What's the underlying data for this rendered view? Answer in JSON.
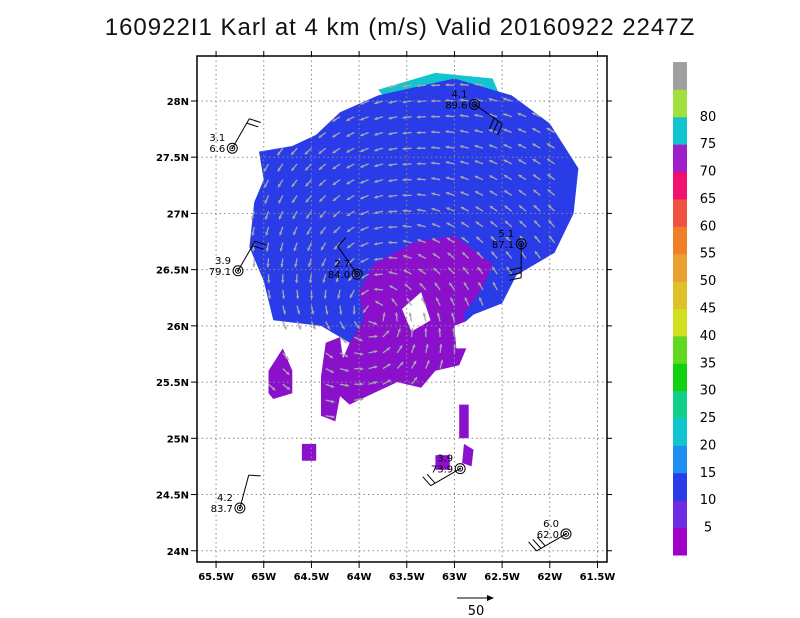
{
  "chart_data": {
    "type": "heatmap",
    "title": "160922I1 Karl at 4 km (m/s) Valid 20160922 2247Z",
    "xlim": [
      -65.7,
      -61.4
    ],
    "ylim": [
      23.9,
      28.4
    ],
    "x_ticks": [
      {
        "value": -65.5,
        "label": "65.5W"
      },
      {
        "value": -65.0,
        "label": "65W"
      },
      {
        "value": -64.5,
        "label": "64.5W"
      },
      {
        "value": -64.0,
        "label": "64W"
      },
      {
        "value": -63.5,
        "label": "63.5W"
      },
      {
        "value": -63.0,
        "label": "63W"
      },
      {
        "value": -62.5,
        "label": "62.5W"
      },
      {
        "value": -62.0,
        "label": "62W"
      },
      {
        "value": -61.5,
        "label": "61.5W"
      }
    ],
    "y_ticks": [
      {
        "value": 24.0,
        "label": "24N"
      },
      {
        "value": 24.5,
        "label": "24.5N"
      },
      {
        "value": 25.0,
        "label": "25N"
      },
      {
        "value": 25.5,
        "label": "25.5N"
      },
      {
        "value": 26.0,
        "label": "26N"
      },
      {
        "value": 26.5,
        "label": "26.5N"
      },
      {
        "value": 27.0,
        "label": "27N"
      },
      {
        "value": 27.5,
        "label": "27.5N"
      },
      {
        "value": 28.0,
        "label": "28N"
      }
    ],
    "grid": true,
    "colorbar": {
      "levels": [
        "5",
        "10",
        "15",
        "20",
        "25",
        "30",
        "35",
        "40",
        "45",
        "50",
        "55",
        "60",
        "65",
        "70",
        "75",
        "80"
      ],
      "colors": [
        "#a000c8",
        "#6e2ce0",
        "#2a3ce8",
        "#1e8ef0",
        "#10c4d0",
        "#10d08a",
        "#10d010",
        "#60d820",
        "#d0e020",
        "#e0c028",
        "#e8a030",
        "#f08028",
        "#f05040",
        "#f01070",
        "#a020c8",
        "#10c4d0",
        "#a0e03c",
        "#a0a0a0"
      ]
    },
    "regions": [
      {
        "value": 22,
        "color": "#10c4d0",
        "polygon": [
          [
            -63.8,
            28.1
          ],
          [
            -63.2,
            28.25
          ],
          [
            -62.6,
            28.2
          ],
          [
            -62.5,
            28.0
          ],
          [
            -62.9,
            27.8
          ],
          [
            -63.6,
            27.9
          ]
        ]
      },
      {
        "value": 17,
        "color": "#1e8ef0",
        "polygon": [
          [
            -64.5,
            27.6
          ],
          [
            -63.9,
            27.95
          ],
          [
            -63.2,
            28.1
          ],
          [
            -62.6,
            28.0
          ],
          [
            -62.2,
            27.8
          ],
          [
            -61.9,
            27.35
          ],
          [
            -62.1,
            27.0
          ],
          [
            -62.4,
            26.8
          ],
          [
            -62.9,
            26.75
          ],
          [
            -63.3,
            26.9
          ],
          [
            -63.8,
            26.75
          ],
          [
            -64.0,
            26.55
          ],
          [
            -64.3,
            26.65
          ],
          [
            -64.7,
            26.85
          ],
          [
            -65.0,
            27.1
          ],
          [
            -64.9,
            27.4
          ]
        ]
      },
      {
        "value": 12,
        "color": "#2a3ce8",
        "polygon": [
          [
            -65.05,
            27.55
          ],
          [
            -64.7,
            27.6
          ],
          [
            -64.45,
            27.7
          ],
          [
            -64.2,
            27.9
          ],
          [
            -63.8,
            28.05
          ],
          [
            -63.0,
            28.2
          ],
          [
            -62.4,
            28.05
          ],
          [
            -62.0,
            27.8
          ],
          [
            -61.7,
            27.4
          ],
          [
            -61.75,
            27.0
          ],
          [
            -61.95,
            26.65
          ],
          [
            -62.35,
            26.45
          ],
          [
            -62.5,
            26.2
          ],
          [
            -62.8,
            26.1
          ],
          [
            -63.0,
            25.95
          ],
          [
            -63.3,
            25.9
          ],
          [
            -63.5,
            25.75
          ],
          [
            -63.9,
            25.7
          ],
          [
            -64.1,
            25.85
          ],
          [
            -64.4,
            26.0
          ],
          [
            -64.9,
            26.05
          ],
          [
            -65.0,
            26.4
          ],
          [
            -65.15,
            26.7
          ],
          [
            -65.1,
            27.1
          ],
          [
            -65.0,
            27.3
          ]
        ]
      },
      {
        "value": 4,
        "color": "#8a10cc",
        "polygon": [
          [
            -63.4,
            26.75
          ],
          [
            -63.0,
            26.8
          ],
          [
            -62.6,
            26.55
          ],
          [
            -62.7,
            26.35
          ],
          [
            -62.9,
            26.1
          ],
          [
            -62.85,
            25.85
          ],
          [
            -62.95,
            25.65
          ],
          [
            -63.2,
            25.6
          ],
          [
            -63.35,
            25.45
          ],
          [
            -63.6,
            25.5
          ],
          [
            -63.85,
            25.4
          ],
          [
            -64.1,
            25.3
          ],
          [
            -64.3,
            25.45
          ],
          [
            -64.2,
            25.65
          ],
          [
            -64.1,
            25.85
          ],
          [
            -63.95,
            26.05
          ],
          [
            -64.0,
            26.3
          ],
          [
            -63.85,
            26.55
          ]
        ]
      },
      {
        "value": 4,
        "color": "#8a10cc",
        "polygon": [
          [
            -64.35,
            25.85
          ],
          [
            -64.2,
            25.9
          ],
          [
            -64.15,
            25.6
          ],
          [
            -64.25,
            25.15
          ],
          [
            -64.4,
            25.2
          ],
          [
            -64.4,
            25.55
          ]
        ]
      },
      {
        "value": 4,
        "color": "#8a10cc",
        "polygon": [
          [
            -62.95,
            25.3
          ],
          [
            -62.85,
            25.3
          ],
          [
            -62.85,
            25.0
          ],
          [
            -62.95,
            25.0
          ]
        ]
      },
      {
        "value": 4,
        "color": "#8a10cc",
        "polygon": [
          [
            -62.9,
            24.95
          ],
          [
            -62.8,
            24.9
          ],
          [
            -62.82,
            24.75
          ],
          [
            -62.92,
            24.78
          ]
        ]
      },
      {
        "value": 4,
        "color": "#8a10cc",
        "polygon": [
          [
            -63.2,
            24.85
          ],
          [
            -63.05,
            24.85
          ],
          [
            -63.05,
            24.72
          ],
          [
            -63.2,
            24.72
          ]
        ]
      },
      {
        "value": 4,
        "color": "#8a10cc",
        "polygon": [
          [
            -64.6,
            24.95
          ],
          [
            -64.45,
            24.95
          ],
          [
            -64.45,
            24.8
          ],
          [
            -64.6,
            24.8
          ]
        ]
      },
      {
        "value": 4,
        "color": "#8a10cc",
        "polygon": [
          [
            -64.9,
            25.35
          ],
          [
            -64.7,
            25.4
          ],
          [
            -64.7,
            25.6
          ],
          [
            -64.8,
            25.8
          ],
          [
            -64.95,
            25.6
          ],
          [
            -64.95,
            25.4
          ]
        ]
      }
    ],
    "holes": [
      {
        "polygon": [
          [
            -63.55,
            26.15
          ],
          [
            -63.35,
            26.3
          ],
          [
            -63.25,
            26.05
          ],
          [
            -63.45,
            25.95
          ]
        ]
      },
      {
        "polygon": [
          [
            -63.0,
            26.0
          ],
          [
            -62.85,
            26.05
          ],
          [
            -62.85,
            25.8
          ],
          [
            -62.98,
            25.8
          ]
        ]
      }
    ],
    "observations": [
      {
        "lon": -65.33,
        "lat": 27.58,
        "line1": "3.1",
        "line2": "6.6",
        "flags": 2,
        "barb_angle": 30
      },
      {
        "lon": -65.27,
        "lat": 26.49,
        "line1": "3.9",
        "line2": "79.1",
        "flags": 2,
        "barb_angle": 30
      },
      {
        "lon": -64.02,
        "lat": 26.46,
        "line1": "2.7",
        "line2": "84.0",
        "flags": 1,
        "barb_angle": -35
      },
      {
        "lon": -62.79,
        "lat": 27.97,
        "line1": "4.1",
        "line2": "89.6",
        "flags": 3,
        "barb_angle": 125
      },
      {
        "lon": -62.3,
        "lat": 26.73,
        "line1": "5.1",
        "line2": "87.1",
        "flags": 3,
        "barb_angle": 180
      },
      {
        "lon": -62.94,
        "lat": 24.73,
        "line1": "3.9",
        "line2": "73.9",
        "flags": 2,
        "barb_angle": 240
      },
      {
        "lon": -65.25,
        "lat": 24.38,
        "line1": "4.2",
        "line2": "83.7",
        "flags": 1,
        "barb_angle": 15
      },
      {
        "lon": -61.83,
        "lat": 24.15,
        "line1": "6.0",
        "line2": "62.0",
        "flags": 3,
        "barb_angle": 240
      }
    ],
    "vector_reference": {
      "value": 50,
      "label": "50"
    }
  }
}
